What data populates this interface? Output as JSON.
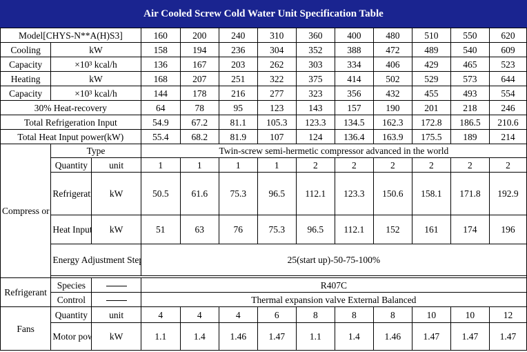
{
  "title": "Air Cooled Screw Cold Water Unit Specification Table",
  "model": {
    "label": "Model[CHYS-N**A(H)S3]",
    "values": [
      "160",
      "200",
      "240",
      "310",
      "360",
      "400",
      "480",
      "510",
      "550",
      "620"
    ]
  },
  "cooling": {
    "label_top": "Cooling",
    "label_bottom": "Capacity",
    "unit_kw": "kW",
    "unit_kcal": "×10³ kcal/h",
    "kw": [
      "158",
      "194",
      "236",
      "304",
      "352",
      "388",
      "472",
      "489",
      "540",
      "609"
    ],
    "kcal": [
      "136",
      "167",
      "203",
      "262",
      "303",
      "334",
      "406",
      "429",
      "465",
      "523"
    ]
  },
  "heating": {
    "label_top": "Heating",
    "label_bottom": "Capacity",
    "unit_kw": "kW",
    "unit_kcal": "×10³ kcal/h",
    "kw": [
      "168",
      "207",
      "251",
      "322",
      "375",
      "414",
      "502",
      "529",
      "573",
      "644"
    ],
    "kcal": [
      "144",
      "178",
      "216",
      "277",
      "323",
      "356",
      "432",
      "455",
      "493",
      "554"
    ]
  },
  "heat_recovery": {
    "label": "30% Heat-recovery",
    "values": [
      "64",
      "78",
      "95",
      "123",
      "143",
      "157",
      "190",
      "201",
      "218",
      "246"
    ]
  },
  "total_refrig": {
    "label": "Total Refrigeration Input",
    "values": [
      "54.9",
      "67.2",
      "81.1",
      "105.3",
      "123.3",
      "134.5",
      "162.3",
      "172.8",
      "186.5",
      "210.6"
    ]
  },
  "total_heat": {
    "label": "Total Heat Input power(kW)",
    "values": [
      "55.4",
      "68.2",
      "81.9",
      "107",
      "124",
      "136.4",
      "163.9",
      "175.5",
      "189",
      "214"
    ]
  },
  "compressor": {
    "label": "Compress\nor",
    "type_label": "Type",
    "type_value": "Twin-screw semi-hermetic compressor advanced in the world",
    "quantity_label": "Quantity",
    "unit_label": "unit",
    "quantity": [
      "1",
      "1",
      "1",
      "1",
      "2",
      "2",
      "2",
      "2",
      "2",
      "2"
    ],
    "refrig_label": "Refrigerati\non Input\npower",
    "refrig_unit": "kW",
    "refrig": [
      "50.5",
      "61.6",
      "75.3",
      "96.5",
      "112.1",
      "123.3",
      "150.6",
      "158.1",
      "171.8",
      "192.9"
    ],
    "heat_label": "Heat Input\npower",
    "heat_unit": "kW",
    "heat": [
      "51",
      "63",
      "76",
      "75.3",
      "96.5",
      "112.1",
      "152",
      "161",
      "174",
      "196"
    ],
    "energy_label": "Energy Adjustment\nStep for Per Module",
    "energy_value": "25(start up)-50-75-100%"
  },
  "refrigerant": {
    "label": "Refrigerant",
    "species_label": "Species",
    "species_value": "R407C",
    "control_label": "Control",
    "control_value": "Thermal expansion valve External Balanced"
  },
  "fans": {
    "label": "Fans",
    "quantity_label": "Quantity",
    "unit_label": "unit",
    "quantity": [
      "4",
      "4",
      "4",
      "6",
      "8",
      "8",
      "8",
      "10",
      "10",
      "12"
    ],
    "motor_label": "Motor\npower",
    "motor_unit": "kW",
    "motor": [
      "1.1",
      "1.4",
      "1.46",
      "1.47",
      "1.1",
      "1.4",
      "1.46",
      "1.47",
      "1.47",
      "1.47"
    ]
  }
}
